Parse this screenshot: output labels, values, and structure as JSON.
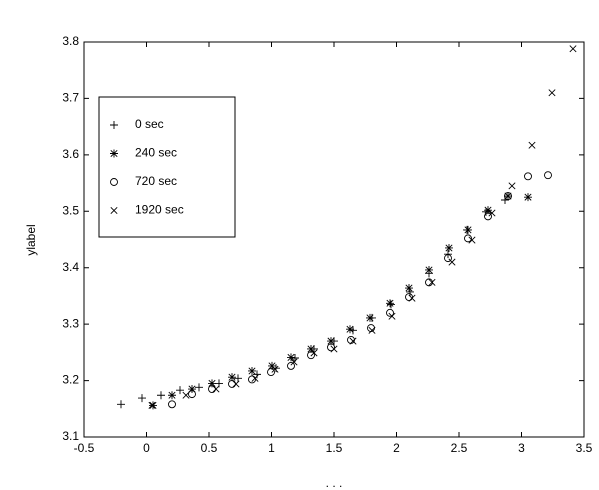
{
  "chart_data": {
    "type": "scatter",
    "xlabel": ". . .",
    "ylabel": "ylabel",
    "xlim": [
      -0.5,
      3.5
    ],
    "xticks": [
      -0.5,
      0,
      0.5,
      1,
      1.5,
      2,
      2.5,
      3,
      3.5
    ],
    "ylim": [
      3.1,
      3.8
    ],
    "yticks": [
      3.1,
      3.2,
      3.3,
      3.4,
      3.5,
      3.6,
      3.7,
      3.8
    ],
    "legend": "upper left",
    "series": [
      {
        "name": "0 sec",
        "marker": "+",
        "color": "#000000",
        "x": [
          -0.204,
          -0.036,
          0.116,
          0.268,
          0.42,
          0.58,
          0.732,
          0.884,
          1.036,
          1.188,
          1.34,
          1.5,
          1.652,
          1.804,
          1.956,
          2.108,
          2.26,
          2.412,
          2.564,
          2.716,
          2.868
        ],
        "values": [
          3.158,
          3.169,
          3.174,
          3.183,
          3.188,
          3.195,
          3.204,
          3.211,
          3.222,
          3.24,
          3.256,
          3.27,
          3.289,
          3.311,
          3.335,
          3.357,
          3.39,
          3.424,
          3.467,
          3.499,
          3.52
        ]
      },
      {
        "name": "240 sec",
        "marker": "*",
        "color": "#000000",
        "x": [
          0.052,
          0.204,
          0.364,
          0.524,
          0.684,
          0.844,
          1.004,
          1.156,
          1.316,
          1.476,
          1.628,
          1.788,
          1.948,
          2.1,
          2.26,
          2.42,
          2.572,
          2.732,
          2.892,
          3.052
        ],
        "values": [
          3.156,
          3.174,
          3.185,
          3.195,
          3.206,
          3.217,
          3.226,
          3.241,
          3.256,
          3.27,
          3.291,
          3.311,
          3.337,
          3.364,
          3.396,
          3.435,
          3.467,
          3.502,
          3.527,
          3.525
        ]
      },
      {
        "name": "720 sec",
        "marker": "o",
        "color": "#000000",
        "x": [
          0.204,
          0.364,
          0.524,
          0.684,
          0.844,
          0.996,
          1.156,
          1.316,
          1.476,
          1.636,
          1.796,
          1.948,
          2.1,
          2.26,
          2.412,
          2.572,
          2.732,
          2.892,
          3.052,
          3.212
        ],
        "values": [
          3.158,
          3.176,
          3.185,
          3.194,
          3.202,
          3.215,
          3.226,
          3.245,
          3.259,
          3.272,
          3.293,
          3.32,
          3.348,
          3.374,
          3.417,
          3.452,
          3.491,
          3.527,
          3.562,
          3.564
        ]
      },
      {
        "name": "1920 sec",
        "marker": "x",
        "color": "#000000",
        "x": [
          0.044,
          0.316,
          0.556,
          0.716,
          0.868,
          1.028,
          1.18,
          1.34,
          1.5,
          1.652,
          1.804,
          1.964,
          2.124,
          2.284,
          2.444,
          2.604,
          2.764,
          2.924,
          3.084,
          3.244,
          3.412
        ],
        "values": [
          3.156,
          3.174,
          3.185,
          3.194,
          3.204,
          3.22,
          3.233,
          3.249,
          3.256,
          3.27,
          3.289,
          3.314,
          3.346,
          3.374,
          3.41,
          3.449,
          3.497,
          3.545,
          3.617,
          3.71,
          3.788
        ]
      }
    ]
  }
}
